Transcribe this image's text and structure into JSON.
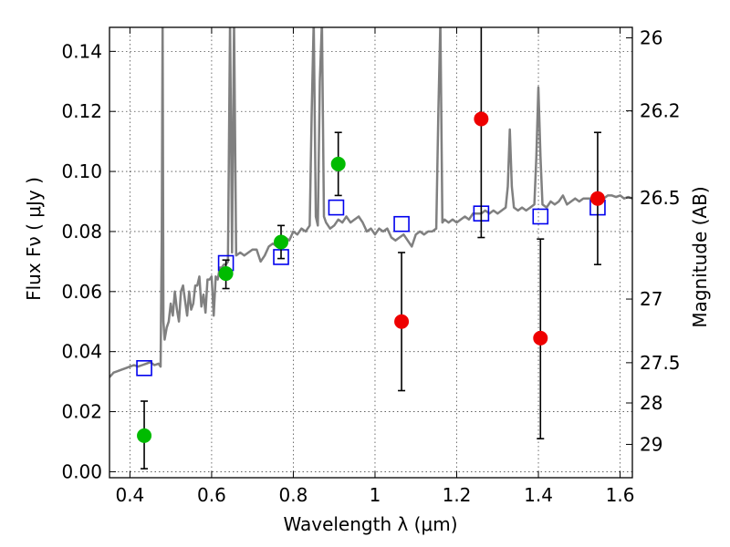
{
  "chart_data": {
    "type": "scatter",
    "title": "",
    "xlabel": "Wavelength  λ (μm)",
    "ylabel": "Flux  Fν  ( μJy )",
    "ylabel_right": "Magnitude (AB)",
    "xlim": [
      0.35,
      1.63
    ],
    "ylim": [
      -0.002,
      0.148
    ],
    "grid": true,
    "x_ticks": [
      0.4,
      0.6,
      0.8,
      1.0,
      1.2,
      1.4,
      1.6
    ],
    "x_tick_labels": [
      "0.4",
      "0.6",
      "0.8",
      "1",
      "1.2",
      "1.4",
      "1.6"
    ],
    "y_ticks": [
      0.0,
      0.02,
      0.04,
      0.06,
      0.08,
      0.1,
      0.12,
      0.14
    ],
    "y_tick_labels": [
      "0.00",
      "0.02",
      "0.04",
      "0.06",
      "0.08",
      "0.10",
      "0.12",
      "0.14"
    ],
    "right_ticks": [
      {
        "label": "26",
        "flux": 0.1445
      },
      {
        "label": "26.2",
        "flux": 0.1202
      },
      {
        "label": "26.5",
        "flux": 0.0912
      },
      {
        "label": "27",
        "flux": 0.0575
      },
      {
        "label": "27.5",
        "flux": 0.0363
      },
      {
        "label": "28",
        "flux": 0.0229
      },
      {
        "label": "29",
        "flux": 0.0091
      }
    ],
    "series": [
      {
        "kind": "line",
        "color": "#808080",
        "points": [
          [
            0.35,
            0.0315
          ],
          [
            0.36,
            0.033
          ],
          [
            0.37,
            0.0335
          ],
          [
            0.38,
            0.034
          ],
          [
            0.39,
            0.0345
          ],
          [
            0.4,
            0.035
          ],
          [
            0.41,
            0.0355
          ],
          [
            0.42,
            0.035
          ],
          [
            0.43,
            0.0355
          ],
          [
            0.44,
            0.036
          ],
          [
            0.45,
            0.0365
          ],
          [
            0.46,
            0.0355
          ],
          [
            0.47,
            0.036
          ],
          [
            0.475,
            0.035
          ],
          [
            0.478,
            0.08
          ],
          [
            0.48,
            0.15
          ],
          [
            0.482,
            0.05
          ],
          [
            0.485,
            0.044
          ],
          [
            0.49,
            0.048
          ],
          [
            0.495,
            0.05
          ],
          [
            0.5,
            0.056
          ],
          [
            0.505,
            0.052
          ],
          [
            0.51,
            0.06
          ],
          [
            0.515,
            0.054
          ],
          [
            0.52,
            0.05
          ],
          [
            0.525,
            0.06
          ],
          [
            0.53,
            0.062
          ],
          [
            0.535,
            0.057
          ],
          [
            0.54,
            0.052
          ],
          [
            0.545,
            0.06
          ],
          [
            0.55,
            0.054
          ],
          [
            0.555,
            0.056
          ],
          [
            0.56,
            0.062
          ],
          [
            0.565,
            0.062
          ],
          [
            0.57,
            0.065
          ],
          [
            0.575,
            0.055
          ],
          [
            0.58,
            0.059
          ],
          [
            0.585,
            0.053
          ],
          [
            0.59,
            0.064
          ],
          [
            0.595,
            0.064
          ],
          [
            0.6,
            0.065
          ],
          [
            0.605,
            0.052
          ],
          [
            0.61,
            0.065
          ],
          [
            0.615,
            0.064
          ],
          [
            0.62,
            0.068
          ],
          [
            0.625,
            0.068
          ],
          [
            0.63,
            0.069
          ],
          [
            0.635,
            0.069
          ],
          [
            0.64,
            0.07
          ],
          [
            0.645,
            0.15
          ],
          [
            0.65,
            0.073
          ],
          [
            0.655,
            0.15
          ],
          [
            0.66,
            0.072
          ],
          [
            0.67,
            0.073
          ],
          [
            0.68,
            0.072
          ],
          [
            0.69,
            0.073
          ],
          [
            0.7,
            0.074
          ],
          [
            0.71,
            0.074
          ],
          [
            0.72,
            0.07
          ],
          [
            0.73,
            0.072
          ],
          [
            0.74,
            0.075
          ],
          [
            0.75,
            0.076
          ],
          [
            0.76,
            0.075
          ],
          [
            0.77,
            0.077
          ],
          [
            0.78,
            0.078
          ],
          [
            0.79,
            0.077
          ],
          [
            0.8,
            0.08
          ],
          [
            0.81,
            0.079
          ],
          [
            0.82,
            0.081
          ],
          [
            0.83,
            0.08
          ],
          [
            0.84,
            0.082
          ],
          [
            0.845,
            0.12
          ],
          [
            0.85,
            0.15
          ],
          [
            0.855,
            0.085
          ],
          [
            0.86,
            0.082
          ],
          [
            0.865,
            0.13
          ],
          [
            0.87,
            0.15
          ],
          [
            0.875,
            0.085
          ],
          [
            0.88,
            0.083
          ],
          [
            0.89,
            0.081
          ],
          [
            0.9,
            0.082
          ],
          [
            0.91,
            0.084
          ],
          [
            0.92,
            0.083
          ],
          [
            0.93,
            0.085
          ],
          [
            0.94,
            0.083
          ],
          [
            0.95,
            0.084
          ],
          [
            0.96,
            0.085
          ],
          [
            0.97,
            0.083
          ],
          [
            0.98,
            0.08
          ],
          [
            0.99,
            0.081
          ],
          [
            1.0,
            0.079
          ],
          [
            1.01,
            0.081
          ],
          [
            1.02,
            0.08
          ],
          [
            1.03,
            0.081
          ],
          [
            1.04,
            0.078
          ],
          [
            1.05,
            0.077
          ],
          [
            1.06,
            0.078
          ],
          [
            1.07,
            0.079
          ],
          [
            1.08,
            0.077
          ],
          [
            1.09,
            0.075
          ],
          [
            1.1,
            0.079
          ],
          [
            1.11,
            0.08
          ],
          [
            1.12,
            0.079
          ],
          [
            1.13,
            0.08
          ],
          [
            1.14,
            0.08
          ],
          [
            1.15,
            0.081
          ],
          [
            1.155,
            0.12
          ],
          [
            1.16,
            0.15
          ],
          [
            1.165,
            0.083
          ],
          [
            1.17,
            0.084
          ],
          [
            1.18,
            0.083
          ],
          [
            1.19,
            0.084
          ],
          [
            1.2,
            0.083
          ],
          [
            1.21,
            0.084
          ],
          [
            1.22,
            0.085
          ],
          [
            1.23,
            0.084
          ],
          [
            1.24,
            0.086
          ],
          [
            1.25,
            0.086
          ],
          [
            1.26,
            0.086
          ],
          [
            1.27,
            0.087
          ],
          [
            1.28,
            0.086
          ],
          [
            1.29,
            0.087
          ],
          [
            1.3,
            0.086
          ],
          [
            1.31,
            0.087
          ],
          [
            1.32,
            0.088
          ],
          [
            1.325,
            0.095
          ],
          [
            1.33,
            0.114
          ],
          [
            1.335,
            0.095
          ],
          [
            1.34,
            0.088
          ],
          [
            1.35,
            0.087
          ],
          [
            1.36,
            0.088
          ],
          [
            1.37,
            0.087
          ],
          [
            1.38,
            0.088
          ],
          [
            1.39,
            0.089
          ],
          [
            1.395,
            0.105
          ],
          [
            1.4,
            0.128
          ],
          [
            1.405,
            0.105
          ],
          [
            1.41,
            0.089
          ],
          [
            1.42,
            0.088
          ],
          [
            1.43,
            0.09
          ],
          [
            1.44,
            0.089
          ],
          [
            1.45,
            0.09
          ],
          [
            1.46,
            0.092
          ],
          [
            1.47,
            0.089
          ],
          [
            1.48,
            0.09
          ],
          [
            1.49,
            0.091
          ],
          [
            1.5,
            0.09
          ],
          [
            1.51,
            0.091
          ],
          [
            1.52,
            0.091
          ],
          [
            1.53,
            0.091
          ],
          [
            1.54,
            0.092
          ],
          [
            1.55,
            0.091
          ],
          [
            1.56,
            0.091
          ],
          [
            1.57,
            0.092
          ],
          [
            1.58,
            0.092
          ],
          [
            1.59,
            0.0915
          ],
          [
            1.6,
            0.092
          ],
          [
            1.61,
            0.091
          ],
          [
            1.62,
            0.0915
          ],
          [
            1.63,
            0.091
          ]
        ]
      },
      {
        "kind": "squares",
        "color": "#0000ee",
        "points": [
          [
            0.435,
            0.0345
          ],
          [
            0.635,
            0.0695
          ],
          [
            0.77,
            0.0715
          ],
          [
            0.905,
            0.088
          ],
          [
            1.065,
            0.0825
          ],
          [
            1.26,
            0.086
          ],
          [
            1.405,
            0.085
          ],
          [
            1.545,
            0.088
          ]
        ]
      },
      {
        "kind": "circles",
        "color": "#00bb00",
        "points": [
          {
            "x": 0.435,
            "y": 0.012,
            "lo": 0.001,
            "hi": 0.0235
          },
          {
            "x": 0.635,
            "y": 0.066,
            "lo": 0.061,
            "hi": 0.0705
          },
          {
            "x": 0.77,
            "y": 0.0765,
            "lo": 0.071,
            "hi": 0.082
          },
          {
            "x": 0.91,
            "y": 0.1025,
            "lo": 0.092,
            "hi": 0.113
          }
        ]
      },
      {
        "kind": "circles",
        "color": "#ee0000",
        "points": [
          {
            "x": 1.065,
            "y": 0.05,
            "lo": 0.027,
            "hi": 0.073
          },
          {
            "x": 1.26,
            "y": 0.1175,
            "lo": 0.078,
            "hi": 0.15
          },
          {
            "x": 1.405,
            "y": 0.0445,
            "lo": 0.011,
            "hi": 0.0775
          },
          {
            "x": 1.545,
            "y": 0.091,
            "lo": 0.069,
            "hi": 0.113
          }
        ]
      }
    ]
  }
}
